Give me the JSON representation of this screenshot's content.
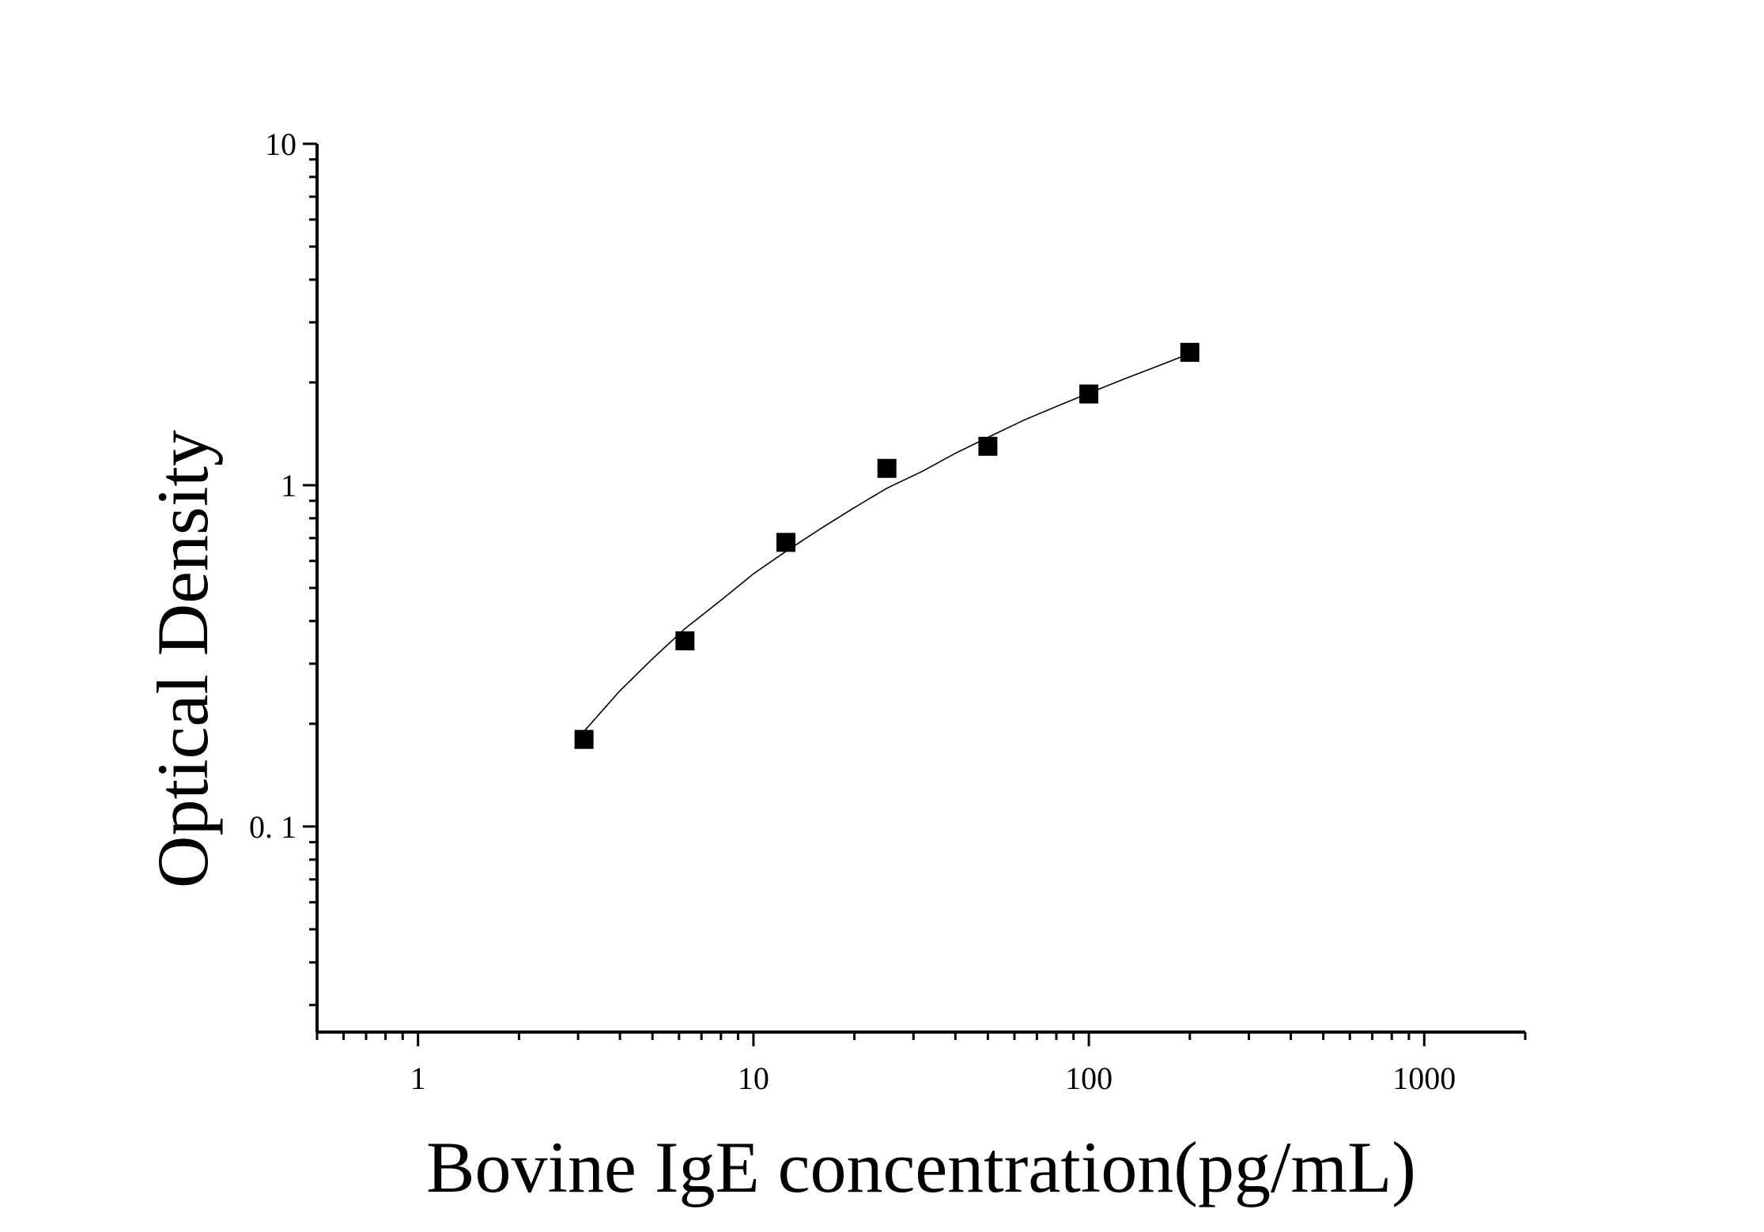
{
  "chart_data": {
    "type": "scatter",
    "xlabel": "Bovine IgE concentration(pg/mL)",
    "ylabel": "Optical Density",
    "x_scale": "log",
    "y_scale": "log",
    "xlim": [
      0.5,
      2000
    ],
    "ylim": [
      0.025,
      10
    ],
    "x_ticks": [
      {
        "value": 1,
        "label": "1"
      },
      {
        "value": 10,
        "label": "10"
      },
      {
        "value": 100,
        "label": "100"
      },
      {
        "value": 1000,
        "label": "1000"
      }
    ],
    "y_ticks": [
      {
        "value": 0.1,
        "label": "0. 1"
      },
      {
        "value": 1,
        "label": "1"
      },
      {
        "value": 10,
        "label": "10"
      }
    ],
    "grid": false,
    "marker": "square",
    "points": [
      {
        "x": 3.125,
        "y": 0.18
      },
      {
        "x": 6.25,
        "y": 0.35
      },
      {
        "x": 12.5,
        "y": 0.68
      },
      {
        "x": 25,
        "y": 1.12
      },
      {
        "x": 50,
        "y": 1.3
      },
      {
        "x": 100,
        "y": 1.85
      },
      {
        "x": 200,
        "y": 2.45
      }
    ],
    "fit_curve": {
      "x": [
        3.125,
        4,
        5,
        6.25,
        8,
        10,
        12.5,
        16,
        20,
        25,
        32,
        40,
        50,
        64,
        80,
        100,
        128,
        160,
        200
      ],
      "y": [
        0.19,
        0.25,
        0.31,
        0.38,
        0.46,
        0.55,
        0.64,
        0.75,
        0.86,
        0.98,
        1.1,
        1.24,
        1.38,
        1.55,
        1.7,
        1.86,
        2.05,
        2.23,
        2.43
      ]
    }
  }
}
